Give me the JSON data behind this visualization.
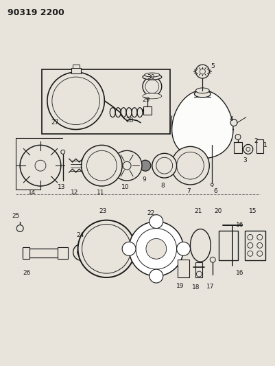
{
  "title": "90319 2200",
  "background_color": "#e8e4dc",
  "fig_width": 4.01,
  "fig_height": 5.33,
  "dpi": 100,
  "line_color": "#1a1a1a",
  "label_fontsize": 6.5,
  "title_fontsize": 9
}
